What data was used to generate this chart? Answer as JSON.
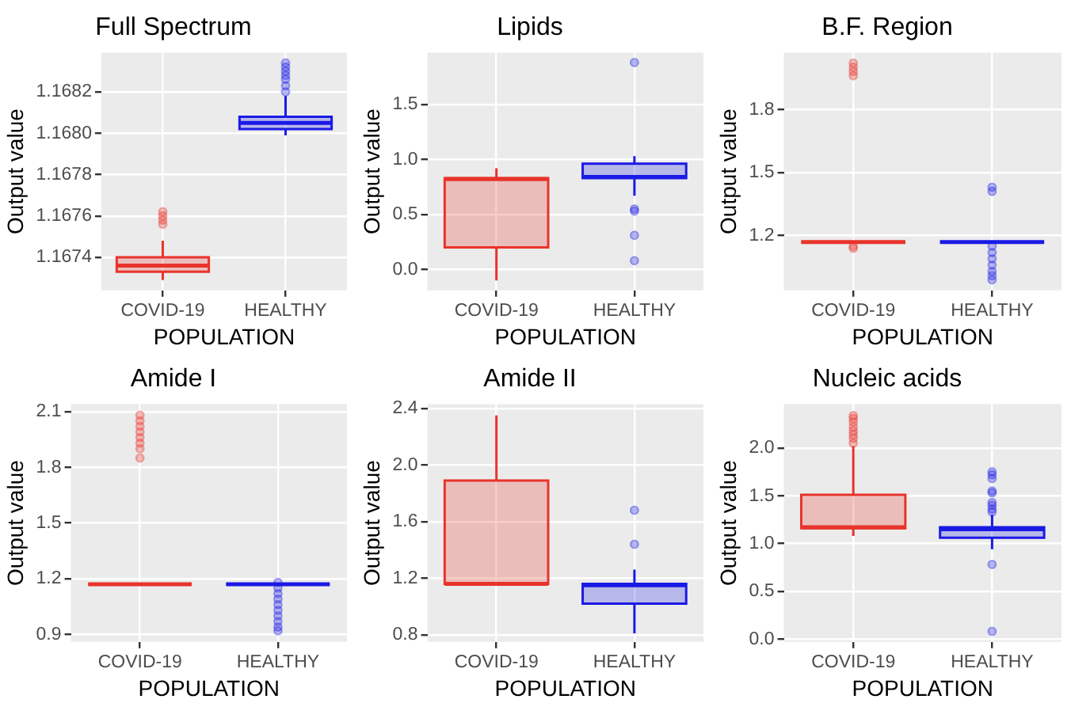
{
  "chart_data": [
    {
      "type": "box",
      "title": "Full Spectrum",
      "xlabel": "POPULATION",
      "ylabel": "Output value",
      "categories": [
        "COVID-19",
        "HEALTHY"
      ],
      "colors": [
        "#e8332a",
        "#1a1ae6"
      ],
      "ylim": [
        1.16724,
        1.16839
      ],
      "yticks": [
        1.1674,
        1.1676,
        1.1678,
        {
          "value": 1.168,
          "label": "1.1680"
        },
        1.1682
      ],
      "grid": true,
      "boxes": [
        {
          "low": 1.16729,
          "q1": 1.16733,
          "median": 1.16736,
          "q3": 1.1674,
          "high": 1.16748,
          "outliers": [
            1.16756,
            1.16758,
            1.1676,
            1.16762
          ]
        },
        {
          "low": 1.16799,
          "q1": 1.16802,
          "median": 1.16805,
          "q3": 1.16808,
          "high": 1.16818,
          "outliers": [
            1.1682,
            1.16823,
            1.16826,
            1.16828,
            1.1683,
            1.16832,
            1.16834
          ]
        }
      ]
    },
    {
      "type": "box",
      "title": "Lipids",
      "xlabel": "POPULATION",
      "ylabel": "Output value",
      "categories": [
        "COVID-19",
        "HEALTHY"
      ],
      "colors": [
        "#e8332a",
        "#1a1ae6"
      ],
      "ylim": [
        -0.19,
        1.97
      ],
      "yticks": [
        {
          "value": 0,
          "label": "0.0"
        },
        0.5,
        {
          "value": 1,
          "label": "1.0"
        },
        1.5
      ],
      "grid": true,
      "boxes": [
        {
          "low": -0.1,
          "q1": 0.2,
          "median": 0.82,
          "q3": 0.83,
          "high": 0.92
        },
        {
          "low": 0.67,
          "q1": 0.83,
          "median": 0.84,
          "q3": 0.96,
          "high": 1.03,
          "outliers": [
            0.08,
            0.31,
            0.53,
            0.55,
            1.88
          ]
        }
      ]
    },
    {
      "type": "box",
      "title": "B.F. Region",
      "xlabel": "POPULATION",
      "ylabel": "Output value",
      "categories": [
        "COVID-19",
        "HEALTHY"
      ],
      "colors": [
        "#e8332a",
        "#1a1ae6"
      ],
      "ylim": [
        0.94,
        2.07
      ],
      "yticks": [
        1.2,
        1.5,
        1.8
      ],
      "grid": true,
      "boxes": [
        {
          "low": 1.17,
          "q1": 1.17,
          "median": 1.17,
          "q3": 1.17,
          "high": 1.17,
          "outliers": [
            1.14,
            1.15,
            1.96,
            1.98,
            2.0,
            2.02
          ]
        },
        {
          "low": 1.17,
          "q1": 1.17,
          "median": 1.17,
          "q3": 1.17,
          "high": 1.17,
          "outliers": [
            0.99,
            1.01,
            1.03,
            1.06,
            1.09,
            1.12,
            1.15,
            1.41,
            1.43
          ]
        }
      ]
    },
    {
      "type": "box",
      "title": "Amide I",
      "xlabel": "POPULATION",
      "ylabel": "Output value",
      "categories": [
        "COVID-19",
        "HEALTHY"
      ],
      "colors": [
        "#e8332a",
        "#1a1ae6"
      ],
      "ylim": [
        0.86,
        2.14
      ],
      "yticks": [
        0.9,
        1.2,
        1.5,
        1.8,
        2.1
      ],
      "grid": true,
      "boxes": [
        {
          "low": 1.17,
          "q1": 1.17,
          "median": 1.17,
          "q3": 1.17,
          "high": 1.17,
          "outliers": [
            1.85,
            1.9,
            1.93,
            1.96,
            1.99,
            2.02,
            2.05,
            2.08
          ]
        },
        {
          "low": 1.17,
          "q1": 1.17,
          "median": 1.17,
          "q3": 1.17,
          "high": 1.17,
          "outliers": [
            0.92,
            0.94,
            0.97,
            1.0,
            1.03,
            1.06,
            1.09,
            1.12,
            1.15,
            1.18
          ]
        }
      ]
    },
    {
      "type": "box",
      "title": "Amide II",
      "xlabel": "POPULATION",
      "ylabel": "Output value",
      "categories": [
        "COVID-19",
        "HEALTHY"
      ],
      "colors": [
        "#e8332a",
        "#1a1ae6"
      ],
      "ylim": [
        0.75,
        2.43
      ],
      "yticks": [
        0.8,
        1.2,
        1.6,
        {
          "value": 2,
          "label": "2.0"
        },
        2.4
      ],
      "grid": true,
      "boxes": [
        {
          "low": 1.16,
          "q1": 1.16,
          "median": 1.16,
          "q3": 1.89,
          "high": 2.35
        },
        {
          "low": 0.81,
          "q1": 1.02,
          "median": 1.15,
          "q3": 1.16,
          "high": 1.26,
          "outliers": [
            1.44,
            1.68
          ]
        }
      ]
    },
    {
      "type": "box",
      "title": "Nucleic acids",
      "xlabel": "POPULATION",
      "ylabel": "Output value",
      "categories": [
        "COVID-19",
        "HEALTHY"
      ],
      "colors": [
        "#e8332a",
        "#1a1ae6"
      ],
      "ylim": [
        -0.03,
        2.46
      ],
      "yticks": [
        {
          "value": 0,
          "label": "0.0"
        },
        0.5,
        {
          "value": 1,
          "label": "1.0"
        },
        1.5,
        {
          "value": 2,
          "label": "2.0"
        }
      ],
      "grid": true,
      "boxes": [
        {
          "low": 1.08,
          "q1": 1.16,
          "median": 1.17,
          "q3": 1.51,
          "high": 2.02,
          "outliers": [
            2.05,
            2.1,
            2.14,
            2.18,
            2.22,
            2.27,
            2.31,
            2.34
          ]
        },
        {
          "low": 0.94,
          "q1": 1.06,
          "median": 1.15,
          "q3": 1.17,
          "high": 1.3,
          "outliers": [
            0.08,
            0.78,
            1.33,
            1.36,
            1.4,
            1.43,
            1.53,
            1.55,
            1.68,
            1.72,
            1.75
          ]
        }
      ]
    }
  ]
}
